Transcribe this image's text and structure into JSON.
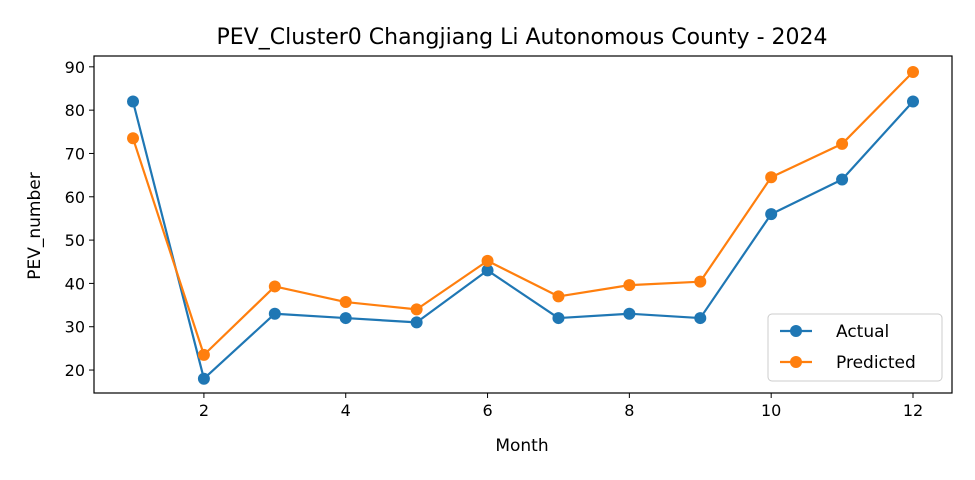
{
  "chart_data": {
    "type": "line",
    "title": "PEV_Cluster0 Changjiang Li Autonomous County - 2024",
    "xlabel": "Month",
    "ylabel": "PEV_number",
    "x": [
      1,
      2,
      3,
      4,
      5,
      6,
      7,
      8,
      9,
      10,
      11,
      12
    ],
    "xlim": [
      0.45,
      12.55
    ],
    "ylim": [
      14.7,
      92.5
    ],
    "xticks": [
      2,
      4,
      6,
      8,
      10,
      12
    ],
    "yticks": [
      20,
      30,
      40,
      50,
      60,
      70,
      80,
      90
    ],
    "grid": false,
    "legend_position": "lower-right",
    "series": [
      {
        "name": "Actual",
        "color": "#1f77b4",
        "values": [
          82,
          18,
          33,
          32,
          31,
          43,
          32,
          33,
          32,
          56,
          64,
          82
        ]
      },
      {
        "name": "Predicted",
        "color": "#ff7f0e",
        "values": [
          73.5,
          23.5,
          39.3,
          35.7,
          34,
          45.2,
          37,
          39.6,
          40.4,
          64.5,
          72.2,
          88.8
        ]
      }
    ]
  }
}
